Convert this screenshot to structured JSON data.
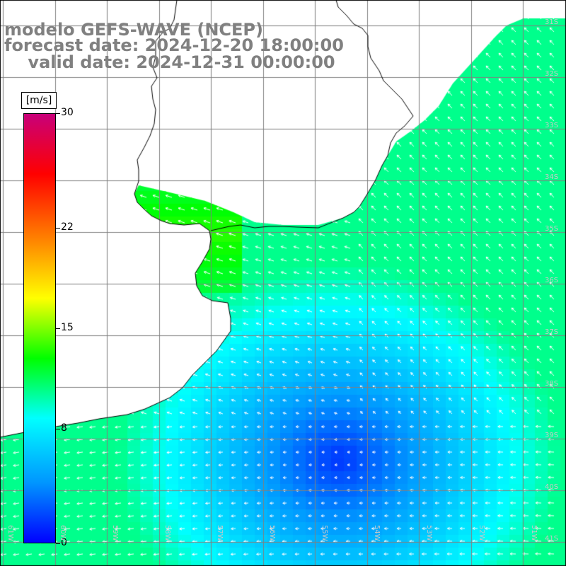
{
  "title": {
    "line1": "modelo GEFS-WAVE (NCEP)",
    "line2": "forecast date: 2024-12-20 18:00:00",
    "line3": "    valid date: 2024-12-31 00:00:00"
  },
  "legend": {
    "units": "[m/s]",
    "ticks": [
      {
        "value": 30,
        "label": "30"
      },
      {
        "value": 22,
        "label": "22"
      },
      {
        "value": 15,
        "label": "15"
      },
      {
        "value": 8,
        "label": "8"
      },
      {
        "value": 0,
        "label": "0"
      }
    ],
    "scale_colors": [
      "#0000ff",
      "#0096ff",
      "#00ffff",
      "#00ff00",
      "#ffff00",
      "#ff8000",
      "#ff0000",
      "#c8007a"
    ]
  },
  "colors": {
    "background": "#ffffff",
    "grid": "#808080",
    "coast": "#000000",
    "arrow": "#ffffff",
    "title": "#808080"
  },
  "map_labels": {
    "latitudes": [
      "31S",
      "32S",
      "33S",
      "34S",
      "35S",
      "36S",
      "37S",
      "38S",
      "39S",
      "40S",
      "41S"
    ],
    "longitudes": [
      "61W",
      "60W",
      "59W",
      "58W",
      "57W",
      "56W",
      "55W",
      "54W",
      "53W",
      "52W",
      "51W"
    ]
  }
}
